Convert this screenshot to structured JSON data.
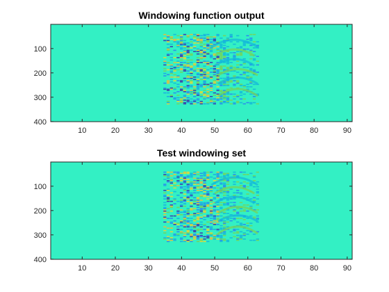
{
  "chart_data": [
    {
      "type": "heatmap",
      "title": "Windowing function output",
      "xlabel": "",
      "ylabel": "",
      "xlim": [
        0.5,
        91.5
      ],
      "ylim": [
        0.5,
        400.5
      ],
      "y_direction": "reverse",
      "xticks": [
        10,
        20,
        30,
        40,
        50,
        60,
        70,
        80,
        90
      ],
      "yticks": [
        100,
        200,
        300,
        400
      ],
      "colormap": "parula",
      "background_color": "#33f0c4",
      "grid": false
    },
    {
      "type": "heatmap",
      "title": "Test windowing set",
      "xlabel": "",
      "ylabel": "",
      "xlim": [
        0.5,
        91.5
      ],
      "ylim": [
        0.5,
        400.5
      ],
      "y_direction": "reverse",
      "xticks": [
        10,
        20,
        30,
        40,
        50,
        60,
        70,
        80,
        90
      ],
      "yticks": [
        100,
        200,
        300,
        400
      ],
      "colormap": "parula",
      "background_color": "#33f0c4",
      "grid": false
    }
  ]
}
